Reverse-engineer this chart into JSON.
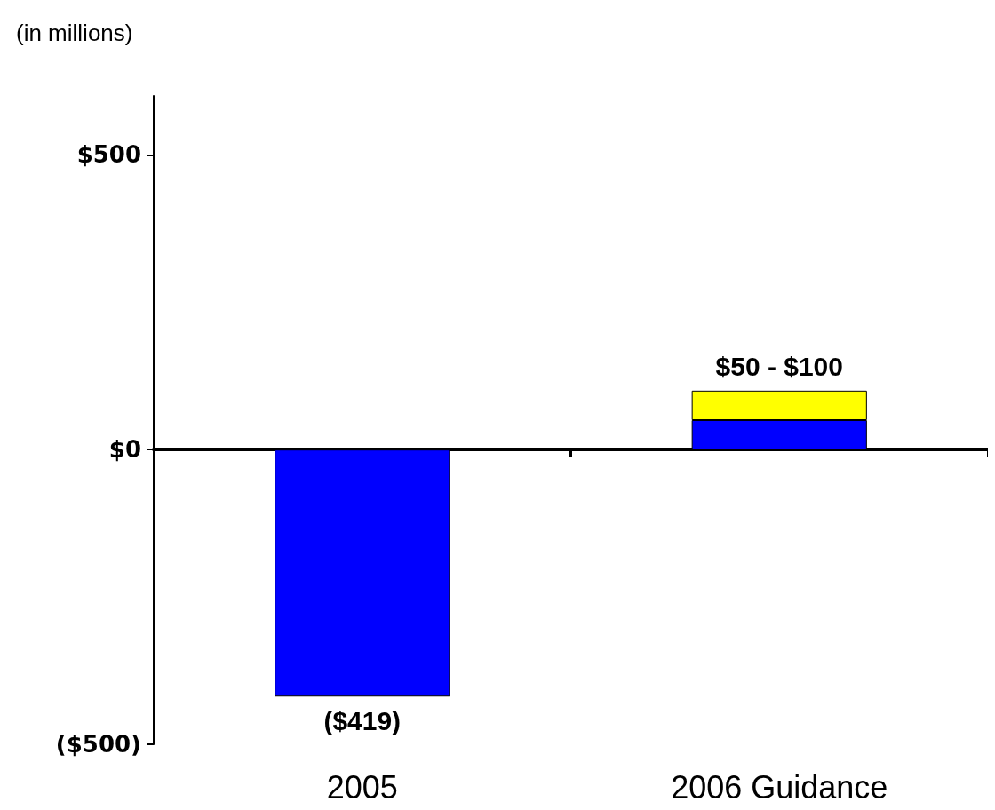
{
  "chart_data": {
    "type": "bar",
    "ylabel": "(in millions)",
    "categories": [
      "2005",
      "2006 Guidance"
    ],
    "stacked": true,
    "series": [
      {
        "color": "#0000ff",
        "values": [
          -419,
          50
        ],
        "value_labels": [
          "($419)",
          null
        ]
      },
      {
        "color": "#ffff00",
        "values": [
          null,
          50
        ],
        "value_labels": [
          null,
          "$50 - $100"
        ]
      }
    ],
    "ylim": [
      -500,
      600
    ],
    "yticks": [
      {
        "value": 500,
        "label": "$500"
      },
      {
        "value": 0,
        "label": "$0"
      },
      {
        "value": -500,
        "label": "($500)"
      }
    ]
  }
}
